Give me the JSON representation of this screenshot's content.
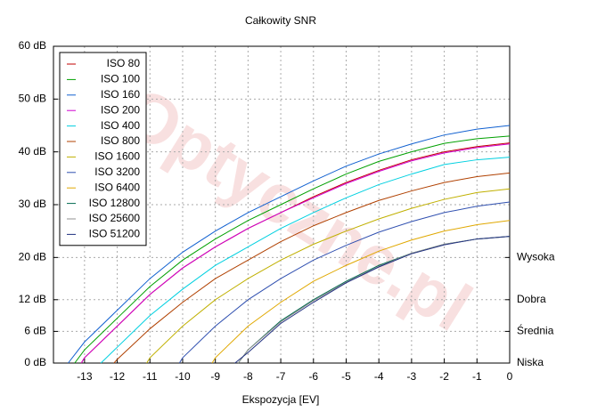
{
  "chart_data": {
    "type": "line",
    "title": "Całkowity SNR",
    "x_label": "Ekspozycja [EV]",
    "watermark": "Optyczne.pl",
    "xlim": [
      -13.95,
      0
    ],
    "xticks": [
      -13,
      -12,
      -11,
      -10,
      -9,
      -8,
      -7,
      -6,
      -5,
      -4,
      -3,
      -2,
      -1,
      0
    ],
    "ylim": [
      0,
      60
    ],
    "yticks": [
      {
        "value": 0,
        "label": "0 dB"
      },
      {
        "value": 6,
        "label": "6 dB"
      },
      {
        "value": 12,
        "label": "12 dB"
      },
      {
        "value": 20,
        "label": "20 dB"
      },
      {
        "value": 30,
        "label": "30 dB"
      },
      {
        "value": 40,
        "label": "40 dB"
      },
      {
        "value": 50,
        "label": "50 dB"
      },
      {
        "value": 60,
        "label": "60 dB"
      }
    ],
    "y2lim": [
      0,
      60
    ],
    "y2ticks": [
      {
        "value": 0,
        "label": "Niska"
      },
      {
        "value": 6,
        "label": "Średnia"
      },
      {
        "value": 12,
        "label": "Dobra"
      },
      {
        "value": 20,
        "label": "Wysoka"
      }
    ],
    "grid": true,
    "legend": "top-left",
    "series": [
      {
        "name": "ISO 80",
        "color": "#c00000",
        "x": [
          -13.1,
          -13,
          -12,
          -11,
          -10,
          -9,
          -8,
          -7,
          -6,
          -5,
          -4,
          -3,
          -2,
          -1,
          0
        ],
        "values": [
          0,
          1,
          7,
          13,
          18,
          22,
          25.5,
          28.5,
          31.5,
          34.2,
          36.5,
          38.5,
          40,
          41,
          41.7
        ]
      },
      {
        "name": "ISO 100",
        "color": "#00a000",
        "x": [
          -13.3,
          -13,
          -12,
          -11,
          -10,
          -9,
          -8,
          -7,
          -6,
          -5,
          -4,
          -3,
          -2,
          -1,
          0
        ],
        "values": [
          0,
          2.5,
          8.5,
          14.5,
          19.5,
          23.5,
          27,
          30,
          33,
          35.8,
          38.2,
          40,
          41.6,
          42.5,
          43
        ]
      },
      {
        "name": "ISO 160",
        "color": "#1060d0",
        "x": [
          -13.5,
          -13,
          -12,
          -11,
          -10,
          -9,
          -8,
          -7,
          -6,
          -5,
          -4,
          -3,
          -2,
          -1,
          0
        ],
        "values": [
          0,
          4,
          10,
          16,
          21,
          25,
          28.5,
          31.5,
          34.5,
          37.3,
          39.6,
          41.5,
          43.2,
          44.3,
          45
        ]
      },
      {
        "name": "ISO 200",
        "color": "#d000d0",
        "x": [
          -13.1,
          -13,
          -12,
          -11,
          -10,
          -9,
          -8,
          -7,
          -6,
          -5,
          -4,
          -3,
          -2,
          -1,
          0
        ],
        "values": [
          0,
          1,
          7,
          13,
          18,
          22,
          25.5,
          28.5,
          31.3,
          34,
          36.3,
          38.3,
          39.8,
          40.8,
          41.5
        ]
      },
      {
        "name": "ISO 400",
        "color": "#00d0e0",
        "x": [
          -12.5,
          -12,
          -11,
          -10,
          -9,
          -8,
          -7,
          -6,
          -5,
          -4,
          -3,
          -2,
          -1,
          0
        ],
        "values": [
          0,
          3,
          9,
          14,
          18.5,
          22,
          25.5,
          28.5,
          31.3,
          33.8,
          35.8,
          37.6,
          38.5,
          39
        ]
      },
      {
        "name": "ISO 800",
        "color": "#b04000",
        "x": [
          -12.1,
          -12,
          -11,
          -10,
          -9,
          -8,
          -7,
          -6,
          -5,
          -4,
          -3,
          -2,
          -1,
          0
        ],
        "values": [
          0,
          0.7,
          6.5,
          11.5,
          16,
          19.5,
          23,
          26,
          28.5,
          30.8,
          32.6,
          34.2,
          35.3,
          36
        ]
      },
      {
        "name": "ISO 1600",
        "color": "#c0b000",
        "x": [
          -11.1,
          -11,
          -10,
          -9,
          -8,
          -7,
          -6,
          -5,
          -4,
          -3,
          -2,
          -1,
          0
        ],
        "values": [
          0,
          1,
          7,
          12,
          16,
          19.5,
          22.5,
          25,
          27.3,
          29.3,
          31,
          32.3,
          33
        ]
      },
      {
        "name": "ISO 3200",
        "color": "#3050b0",
        "x": [
          -10.1,
          -10,
          -9,
          -8,
          -7,
          -6,
          -5,
          -4,
          -3,
          -2,
          -1,
          0
        ],
        "values": [
          0,
          1,
          7,
          12,
          16,
          19.5,
          22.3,
          24.8,
          26.8,
          28.5,
          29.7,
          30.5
        ]
      },
      {
        "name": "ISO 6400",
        "color": "#e0a800",
        "x": [
          -9.1,
          -9,
          -8,
          -7,
          -6,
          -5,
          -4,
          -3,
          -2,
          -1,
          0
        ],
        "values": [
          0,
          1,
          7,
          11.5,
          15.5,
          18.5,
          21.2,
          23.3,
          25,
          26.2,
          27
        ]
      },
      {
        "name": "ISO 12800",
        "color": "#006a50",
        "x": [
          -8.3,
          -8,
          -7,
          -6,
          -5,
          -4,
          -3,
          -2,
          -1,
          0
        ],
        "values": [
          0,
          2.5,
          8,
          12,
          15.5,
          18.5,
          20.8,
          22.5,
          23.5,
          24
        ]
      },
      {
        "name": "ISO 25600",
        "color": "#909090",
        "x": [
          -8.3,
          -8,
          -7,
          -6,
          -5,
          -4,
          -3,
          -2,
          -1,
          0
        ],
        "values": [
          0,
          2.5,
          7.8,
          11.8,
          15.3,
          18.3,
          20.8,
          22.5,
          23.5,
          24
        ]
      },
      {
        "name": "ISO 51200",
        "color": "#203080",
        "x": [
          -8.4,
          -8,
          -7,
          -6,
          -5,
          -4,
          -3,
          -2,
          -1,
          0
        ],
        "values": [
          0,
          2,
          7.5,
          11.5,
          15.2,
          18.2,
          20.7,
          22.4,
          23.5,
          24
        ]
      }
    ]
  }
}
